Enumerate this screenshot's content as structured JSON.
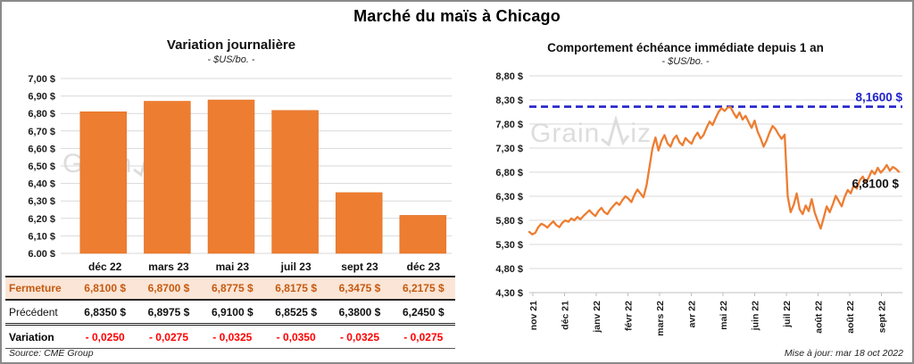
{
  "page": {
    "title": "Marché du maïs à Chicago",
    "watermark": "GrainWiz",
    "watermark_part1": "Grain",
    "watermark_part2": "iz",
    "source_note": "Source: CME Group",
    "update_note": "Mise à jour: mar 18 oct 2022"
  },
  "colors": {
    "accent_orange": "#ED7D31",
    "reference_blue": "#2222CC",
    "variation_red": "#FF0000",
    "fermeture_bg": "#FBE5D6",
    "fermeture_text": "#C55A11",
    "grid": "#D9D9D9",
    "axis": "#BFBFBF"
  },
  "chart_data": [
    {
      "type": "bar",
      "title": "Variation journalière",
      "subtitle": "- $US/bo. -",
      "categories": [
        "déc 22",
        "mars 23",
        "mai 23",
        "juil 23",
        "sept 23",
        "déc 23"
      ],
      "values": [
        6.81,
        6.87,
        6.8775,
        6.8175,
        6.3475,
        6.2175
      ],
      "ylabel": "$US/bo.",
      "ylim": [
        6.0,
        7.0
      ],
      "ytick_step": 0.1,
      "yticklabels": [
        "7,00 $",
        "6,90 $",
        "6,80 $",
        "6,70 $",
        "6,60 $",
        "6,50 $",
        "6,40 $",
        "6,30 $",
        "6,20 $",
        "6,10 $",
        "6,00 $"
      ],
      "grid": true,
      "bar_color": "#ED7D31"
    },
    {
      "type": "line",
      "title": "Comportement échéance immédiate depuis 1 an",
      "subtitle": "- $US/bo. -",
      "ylabel": "$US/bo.",
      "ylim": [
        4.3,
        8.8
      ],
      "ytick_step": 0.5,
      "yticklabels": [
        "8,80 $",
        "8,30 $",
        "7,80 $",
        "7,30 $",
        "6,80 $",
        "6,30 $",
        "5,80 $",
        "5,30 $",
        "4,80 $",
        "4,30 $"
      ],
      "xticklabels": [
        "nov 21",
        "déc 21",
        "janv 22",
        "févr 22",
        "mars 22",
        "avr 22",
        "mai 22",
        "juin 22",
        "juil 22",
        "août 22",
        "août 22",
        "sept 22"
      ],
      "grid": true,
      "line_color": "#ED7D31",
      "reference_line": {
        "value": 8.16,
        "label": "8,1600 $",
        "color": "#2222CC",
        "style": "dashed"
      },
      "last_point": {
        "value": 6.81,
        "label": "6,8100 $"
      },
      "values": [
        5.56,
        5.51,
        5.54,
        5.66,
        5.73,
        5.7,
        5.65,
        5.72,
        5.78,
        5.7,
        5.66,
        5.75,
        5.8,
        5.77,
        5.84,
        5.8,
        5.87,
        5.82,
        5.89,
        5.95,
        6.01,
        5.94,
        5.89,
        5.99,
        6.06,
        5.97,
        5.93,
        6.03,
        6.1,
        6.17,
        6.12,
        6.22,
        6.3,
        6.25,
        6.18,
        6.33,
        6.44,
        6.36,
        6.28,
        6.52,
        6.9,
        7.3,
        7.52,
        7.25,
        7.45,
        7.57,
        7.4,
        7.33,
        7.49,
        7.56,
        7.42,
        7.36,
        7.51,
        7.44,
        7.39,
        7.53,
        7.62,
        7.5,
        7.57,
        7.72,
        7.85,
        7.78,
        7.92,
        8.05,
        8.13,
        8.07,
        8.14,
        8.15,
        8.03,
        7.93,
        8.04,
        7.89,
        7.97,
        7.84,
        7.72,
        7.87,
        7.64,
        7.5,
        7.33,
        7.46,
        7.63,
        7.76,
        7.69,
        7.58,
        7.49,
        7.58,
        6.3,
        5.97,
        6.12,
        6.36,
        6.03,
        5.93,
        6.11,
        5.99,
        6.24,
        5.96,
        5.79,
        5.63,
        5.86,
        6.09,
        5.97,
        6.13,
        6.31,
        6.2,
        6.09,
        6.29,
        6.43,
        6.36,
        6.53,
        6.46,
        6.63,
        6.71,
        6.59,
        6.69,
        6.83,
        6.76,
        6.89,
        6.79,
        6.86,
        6.95,
        6.83,
        6.91,
        6.87,
        6.81
      ]
    }
  ],
  "table": {
    "col_headers": [
      "déc 22",
      "mars 23",
      "mai 23",
      "juil 23",
      "sept 23",
      "déc 23"
    ],
    "rows": [
      {
        "label": "Fermeture",
        "values": [
          "6,8100 $",
          "6,8700 $",
          "6,8775 $",
          "6,8175 $",
          "6,3475 $",
          "6,2175 $"
        ]
      },
      {
        "label": "Précédent",
        "values": [
          "6,8350 $",
          "6,8975 $",
          "6,9100 $",
          "6,8525 $",
          "6,3800 $",
          "6,2450 $"
        ]
      },
      {
        "label": "Variation",
        "values": [
          "- 0,0250",
          "- 0,0275",
          "- 0,0325",
          "- 0,0350",
          "- 0,0325",
          "- 0,0275"
        ]
      }
    ]
  }
}
